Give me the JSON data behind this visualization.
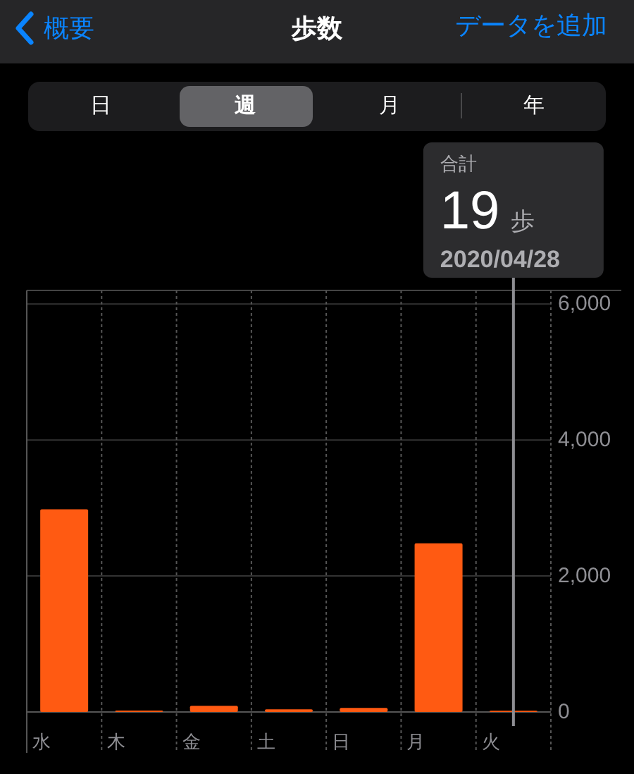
{
  "chart_data": {
    "type": "bar",
    "title": "歩数",
    "categories": [
      "水",
      "木",
      "金",
      "土",
      "日",
      "月",
      "火"
    ],
    "values": [
      2980,
      20,
      90,
      40,
      60,
      2480,
      19
    ],
    "color": "#ff5a12",
    "ylim": [
      0,
      6200
    ],
    "yticks": [
      {
        "value": 0,
        "label": "0"
      },
      {
        "value": 2000,
        "label": "2,000"
      },
      {
        "value": 4000,
        "label": "4,000"
      },
      {
        "value": 6000,
        "label": "6,000"
      }
    ],
    "grid": true,
    "ref_lines": [
      {
        "axis": "x",
        "value": "火",
        "color": "#8e8e93"
      }
    ],
    "annotations": [
      "概要",
      "データを追加",
      "日",
      "週",
      "月",
      "年",
      "合計",
      "19",
      "歩",
      "2020/04/28"
    ]
  }
}
